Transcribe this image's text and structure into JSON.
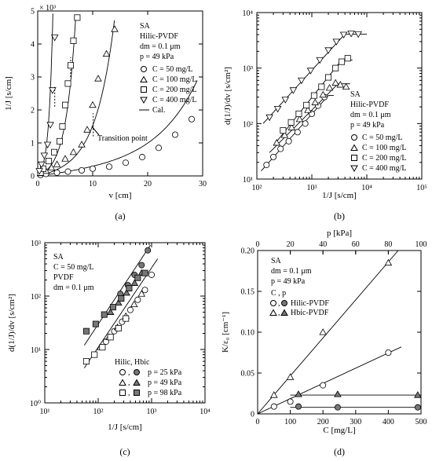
{
  "chart_data": [
    {
      "panel_label": "(a)",
      "type": "scatter",
      "xlabel": "v  [cm]",
      "ylabel": "1/J  [s/cm]",
      "y_multiplier": "× 10³",
      "xlim": [
        0,
        30
      ],
      "ylim": [
        0,
        5
      ],
      "x_ticks": [
        "0",
        "10",
        "20",
        "30"
      ],
      "y_ticks": [
        "0",
        "1",
        "2",
        "3",
        "4",
        "5"
      ],
      "legend": {
        "header": [
          "SA",
          "Hilic-PVDF",
          "dm = 0.1 μm",
          "p = 49 kPa"
        ],
        "entries": [
          "C =  50 mg/L",
          "C = 100 mg/L",
          "C = 200 mg/L",
          "C = 400 mg/L",
          "Cal."
        ]
      },
      "annotation": "Transition point",
      "series": [
        {
          "name": "C = 50 mg/L",
          "marker": "circle",
          "x": [
            0.5,
            1.5,
            3.5,
            5.5,
            8,
            10,
            13,
            16,
            19,
            22,
            25,
            28
          ],
          "y": [
            0.03,
            0.06,
            0.1,
            0.13,
            0.17,
            0.22,
            0.28,
            0.4,
            0.57,
            0.85,
            1.25,
            1.72
          ]
        },
        {
          "name": "C = 100 mg/L",
          "marker": "triangle-up",
          "x": [
            0.5,
            1.5,
            2.5,
            3.5,
            5,
            6.5,
            8,
            9,
            10,
            11,
            12.5,
            14
          ],
          "y": [
            0.08,
            0.15,
            0.25,
            0.35,
            0.52,
            0.72,
            0.95,
            1.4,
            2.15,
            2.95,
            3.7,
            4.45
          ]
        },
        {
          "name": "C = 200 mg/L",
          "marker": "square",
          "x": [
            0.5,
            1,
            2,
            3,
            4,
            4.5,
            5,
            5.5,
            6,
            6.5,
            7.2
          ],
          "y": [
            0.1,
            0.22,
            0.45,
            0.72,
            1.05,
            1.5,
            2.15,
            2.8,
            3.35,
            4.1,
            4.8
          ]
        },
        {
          "name": "C = 400 mg/L",
          "marker": "triangle-down",
          "x": [
            0.3,
            0.7,
            1.2,
            1.8,
            2.3,
            2.7,
            3.1
          ],
          "y": [
            0.15,
            0.35,
            0.62,
            0.95,
            1.55,
            2.6,
            4.2
          ]
        }
      ]
    },
    {
      "panel_label": "(b)",
      "type": "scatter",
      "xscale": "log",
      "yscale": "log",
      "xlabel": "1/J  [s/cm]",
      "ylabel": "d(1/J)/dv  [s/cm²]",
      "xlim": [
        100,
        100000
      ],
      "ylim": [
        10,
        10000
      ],
      "x_ticks": [
        "10²",
        "10³",
        "10⁴",
        "10⁵"
      ],
      "y_ticks": [
        "10¹",
        "10²",
        "10³",
        "10⁴"
      ],
      "legend": {
        "header": [
          "SA",
          "Hilic-PVDF",
          "dm = 0.1 μm",
          "p = 49 kPa"
        ],
        "entries": [
          "C =  50 mg/L",
          "C = 100 mg/L",
          "C = 200 mg/L",
          "C = 400 mg/L"
        ]
      },
      "series": [
        {
          "name": "C = 50 mg/L",
          "marker": "circle",
          "x": [
            150,
            200,
            270,
            380,
            550,
            760,
            1000,
            1300,
            1700
          ],
          "y": [
            18,
            25,
            35,
            48,
            70,
            100,
            150,
            210,
            300
          ]
        },
        {
          "name": "C = 100 mg/L",
          "marker": "triangle-up",
          "x": [
            230,
            320,
            430,
            600,
            850,
            1150,
            1600,
            2100,
            2700,
            3300,
            4200
          ],
          "y": [
            45,
            62,
            85,
            120,
            175,
            240,
            330,
            440,
            540,
            500,
            460
          ]
        },
        {
          "name": "C = 200 mg/L",
          "marker": "square",
          "x": [
            300,
            420,
            580,
            800,
            1100,
            1500,
            2000,
            2700,
            3500,
            4500
          ],
          "y": [
            75,
            105,
            150,
            215,
            320,
            460,
            680,
            1000,
            1300,
            1500
          ]
        },
        {
          "name": "C = 400 mg/L",
          "marker": "triangle-down",
          "x": [
            170,
            240,
            330,
            460,
            650,
            950,
            1400,
            2000,
            2800,
            3800,
            5200,
            7000
          ],
          "y": [
            130,
            185,
            270,
            400,
            600,
            900,
            1400,
            2100,
            3000,
            4000,
            4200,
            4100
          ]
        }
      ]
    },
    {
      "panel_label": "(c)",
      "type": "scatter",
      "xscale": "log",
      "yscale": "log",
      "xlabel": "1/J  [s/cm]",
      "ylabel": "d(1/J)/dv  [s/cm²]",
      "xlim": [
        10,
        10000
      ],
      "ylim": [
        1,
        1000
      ],
      "x_ticks": [
        "10¹",
        "10²",
        "10³",
        "10⁴"
      ],
      "y_ticks": [
        "10⁰",
        "10¹",
        "10²",
        "10³"
      ],
      "legend": {
        "header": [
          "SA",
          "C = 50 mg/L",
          "PVDF",
          "dm = 0.1 μm"
        ],
        "entries_title": "Hilic, Hbic",
        "entries": [
          "p = 25 kPa",
          "p = 49 kPa",
          "p = 98 kPa"
        ]
      },
      "series": [
        {
          "name": "Hilic, p = 25 kPa",
          "marker": "circle",
          "x": [
            140,
            200,
            280,
            400,
            550,
            750,
            1000
          ],
          "y": [
            14,
            22,
            33,
            55,
            85,
            130,
            250
          ]
        },
        {
          "name": "Hbic, p = 25 kPa",
          "marker": "circle-filled",
          "x": [
            260,
            360,
            480,
            650,
            850
          ],
          "y": [
            110,
            160,
            250,
            380,
            720
          ]
        },
        {
          "name": "Hilic, p = 49 kPa",
          "marker": "triangle-up",
          "x": [
            110,
            160,
            230,
            330,
            470,
            650
          ],
          "y": [
            11,
            17,
            26,
            42,
            70,
            110
          ]
        },
        {
          "name": "Hbic, p = 49 kPa",
          "marker": "triangle-up-filled",
          "x": [
            170,
            240,
            340,
            480,
            650
          ],
          "y": [
            50,
            75,
            115,
            175,
            270
          ]
        },
        {
          "name": "Hilic, p = 98 kPa",
          "marker": "square",
          "x": [
            60,
            85,
            120,
            170,
            240,
            330
          ],
          "y": [
            6,
            8,
            11,
            17,
            25,
            38
          ]
        },
        {
          "name": "Hbic, p = 98 kPa",
          "marker": "square-filled",
          "x": [
            60,
            90,
            130,
            190,
            270,
            380,
            550,
            750
          ],
          "y": [
            22,
            30,
            45,
            62,
            90,
            140,
            220,
            270
          ]
        }
      ]
    },
    {
      "panel_label": "(d)",
      "type": "scatter",
      "xlabel": "C  [mg/L]",
      "x2label": "p  [kPa]",
      "ylabel": "K/ε₀  [cm⁻¹]",
      "xlim": [
        0,
        500
      ],
      "x2lim": [
        0,
        100
      ],
      "ylim": [
        0,
        0.2
      ],
      "x_ticks": [
        "0",
        "100",
        "200",
        "300",
        "400",
        "500"
      ],
      "x2_ticks": [
        "0",
        "20",
        "40",
        "60",
        "80",
        "100"
      ],
      "y_ticks": [
        "0",
        "0.05",
        "0.10",
        "0.15",
        "0.20"
      ],
      "legend": {
        "header": [
          "SA",
          "dm = 0.1 μm",
          "p = 49 kPa"
        ],
        "entries_title": "C ,  p",
        "entries": [
          "Hilic-PVDF",
          "Hbic-PVDF"
        ]
      },
      "series": [
        {
          "name": "Hilic-PVDF vs C",
          "marker": "circle",
          "axis": "C",
          "x": [
            50,
            100,
            200,
            400
          ],
          "y": [
            0.009,
            0.015,
            0.035,
            0.075
          ]
        },
        {
          "name": "Hbic-PVDF vs C",
          "marker": "triangle-up",
          "axis": "C",
          "x": [
            50,
            100,
            200,
            400
          ],
          "y": [
            0.023,
            0.045,
            0.1,
            0.185
          ]
        },
        {
          "name": "Hilic-PVDF vs p",
          "marker": "circle-filled",
          "axis": "p",
          "x": [
            25,
            49,
            98
          ],
          "y": [
            0.009,
            0.008,
            0.008
          ]
        },
        {
          "name": "Hbic-PVDF vs p",
          "marker": "triangle-up-filled",
          "axis": "p",
          "x": [
            25,
            49,
            98
          ],
          "y": [
            0.024,
            0.024,
            0.023
          ]
        }
      ]
    }
  ]
}
